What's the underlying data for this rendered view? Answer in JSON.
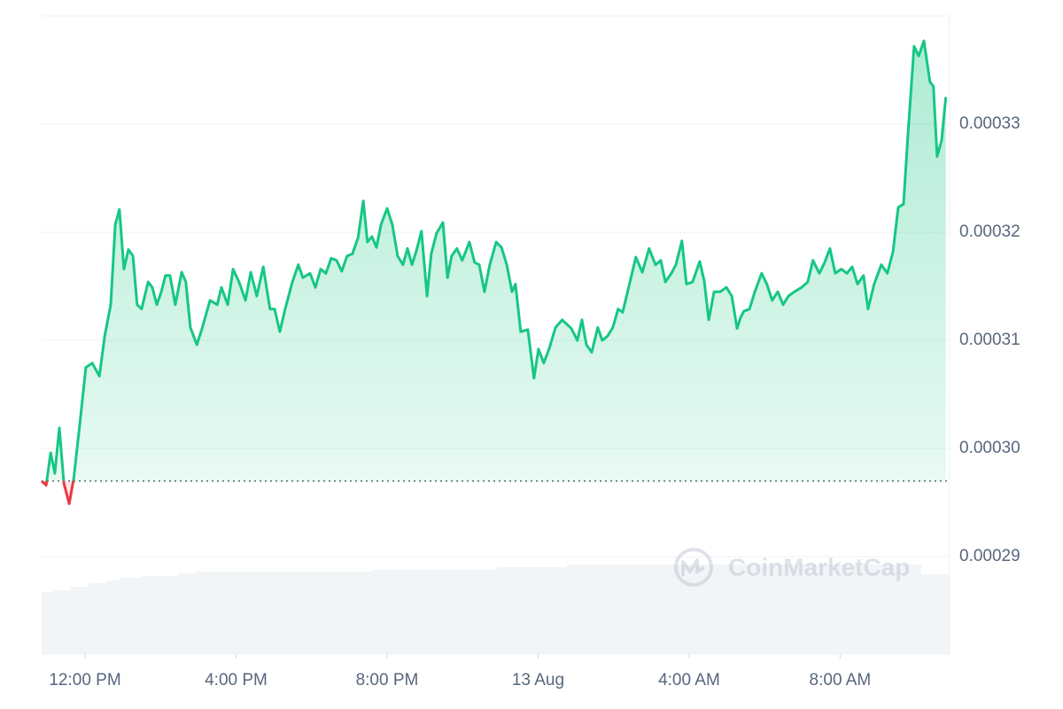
{
  "chart_data": {
    "type": "line",
    "watermark": "CoinMarketCap",
    "color": "#16c784",
    "down_color": "#ea3943",
    "baseline": 0.000297,
    "x": [
      10.85,
      10.97,
      11.09,
      11.2,
      11.32,
      11.44,
      11.58,
      11.7,
      11.86,
      12.02,
      12.19,
      12.38,
      12.52,
      12.68,
      12.8,
      12.91,
      13.03,
      13.15,
      13.27,
      13.38,
      13.5,
      13.67,
      13.78,
      13.9,
      14.02,
      14.13,
      14.25,
      14.39,
      14.56,
      14.67,
      14.79,
      14.96,
      15.1,
      15.31,
      15.5,
      15.61,
      15.78,
      15.92,
      16.08,
      16.25,
      16.39,
      16.55,
      16.72,
      16.9,
      17.02,
      17.16,
      17.3,
      17.49,
      17.65,
      17.77,
      17.96,
      18.1,
      18.24,
      18.38,
      18.52,
      18.66,
      18.8,
      18.94,
      19.08,
      19.23,
      19.37,
      19.48,
      19.6,
      19.72,
      19.84,
      20.0,
      20.14,
      20.28,
      20.42,
      20.54,
      20.66,
      20.77,
      20.91,
      21.06,
      21.17,
      21.31,
      21.48,
      21.6,
      21.71,
      21.85,
      21.99,
      22.18,
      22.32,
      22.44,
      22.58,
      22.72,
      22.89,
      23.03,
      23.17,
      23.31,
      23.4,
      23.54,
      23.73,
      23.89,
      24.01,
      24.15,
      24.29,
      24.46,
      24.64,
      24.88,
      25.04,
      25.16,
      25.28,
      25.42,
      25.58,
      25.7,
      25.84,
      25.98,
      26.12,
      26.24,
      26.4,
      26.59,
      26.76,
      26.94,
      27.11,
      27.25,
      27.37,
      27.53,
      27.65,
      27.81,
      27.93,
      28.09,
      28.28,
      28.4,
      28.52,
      28.66,
      28.82,
      28.99,
      29.13,
      29.27,
      29.36,
      29.45,
      29.6,
      29.74,
      29.92,
      30.06,
      30.2,
      30.35,
      30.49,
      30.63,
      30.79,
      30.98,
      31.14,
      31.28,
      31.45,
      31.59,
      31.73,
      31.87,
      32.03,
      32.18,
      32.32,
      32.46,
      32.62,
      32.74,
      32.9,
      33.09,
      33.25,
      33.4,
      33.54,
      33.68,
      33.79,
      33.96,
      34.08,
      34.22,
      34.38,
      34.47,
      34.57,
      34.69,
      34.8
    ],
    "values": [
      0.000297,
      0.0002966,
      0.0002996,
      0.0002977,
      0.0003019,
      0.0002968,
      0.0002949,
      0.0002972,
      0.0003022,
      0.0003075,
      0.0003079,
      0.0003067,
      0.0003104,
      0.0003133,
      0.0003207,
      0.0003221,
      0.0003166,
      0.0003184,
      0.0003178,
      0.0003133,
      0.0003129,
      0.0003154,
      0.0003149,
      0.0003133,
      0.0003145,
      0.000316,
      0.000316,
      0.0003133,
      0.0003163,
      0.0003154,
      0.0003112,
      0.0003096,
      0.0003111,
      0.0003137,
      0.0003133,
      0.0003149,
      0.0003133,
      0.0003166,
      0.0003154,
      0.0003137,
      0.0003163,
      0.0003141,
      0.0003168,
      0.0003129,
      0.0003129,
      0.0003108,
      0.0003129,
      0.0003154,
      0.000317,
      0.0003158,
      0.0003162,
      0.0003149,
      0.0003166,
      0.0003162,
      0.0003176,
      0.0003174,
      0.0003164,
      0.0003178,
      0.000318,
      0.0003195,
      0.0003229,
      0.0003191,
      0.0003196,
      0.0003186,
      0.0003207,
      0.0003222,
      0.0003207,
      0.0003178,
      0.000317,
      0.0003185,
      0.000317,
      0.0003182,
      0.0003201,
      0.0003141,
      0.000318,
      0.0003199,
      0.0003209,
      0.0003158,
      0.0003178,
      0.0003185,
      0.0003174,
      0.0003191,
      0.0003172,
      0.000317,
      0.0003145,
      0.000317,
      0.0003191,
      0.0003186,
      0.000317,
      0.0003145,
      0.0003152,
      0.0003108,
      0.000311,
      0.0003065,
      0.0003092,
      0.0003079,
      0.0003092,
      0.0003112,
      0.0003119,
      0.0003111,
      0.00031,
      0.0003119,
      0.0003096,
      0.0003089,
      0.0003112,
      0.00031,
      0.0003104,
      0.0003112,
      0.0003129,
      0.0003126,
      0.0003149,
      0.0003177,
      0.0003163,
      0.0003185,
      0.000317,
      0.0003174,
      0.0003154,
      0.0003162,
      0.000317,
      0.0003192,
      0.0003152,
      0.0003154,
      0.0003173,
      0.0003155,
      0.0003119,
      0.0003145,
      0.0003145,
      0.0003149,
      0.0003141,
      0.0003111,
      0.0003121,
      0.0003127,
      0.0003129,
      0.0003145,
      0.0003162,
      0.0003152,
      0.0003137,
      0.0003145,
      0.0003133,
      0.0003141,
      0.0003145,
      0.0003149,
      0.0003154,
      0.0003174,
      0.0003162,
      0.0003172,
      0.0003185,
      0.0003162,
      0.0003166,
      0.0003162,
      0.0003168,
      0.0003152,
      0.000316,
      0.0003129,
      0.0003152,
      0.000317,
      0.0003162,
      0.0003182,
      0.0003223,
      0.0003226,
      0.0003287,
      0.0003372,
      0.0003363,
      0.0003377,
      0.0003339,
      0.0003335,
      0.000327,
      0.0003285,
      0.0003325
    ],
    "xlim": [
      10.85,
      34.9
    ],
    "xticks": [
      {
        "value": 12,
        "label": "12:00 PM"
      },
      {
        "value": 16,
        "label": "4:00 PM"
      },
      {
        "value": 20,
        "label": "8:00 PM"
      },
      {
        "value": 24,
        "label": "13 Aug"
      },
      {
        "value": 28,
        "label": "4:00 AM"
      },
      {
        "value": 32,
        "label": "8:00 AM"
      }
    ],
    "ylim": [
      0.000281,
      0.00034
    ],
    "yticks": [
      0.00029,
      {
        "value": 0.0003,
        "label": "0.00030"
      },
      0.00031,
      0.00032,
      0.00033
    ],
    "grid": true
  }
}
